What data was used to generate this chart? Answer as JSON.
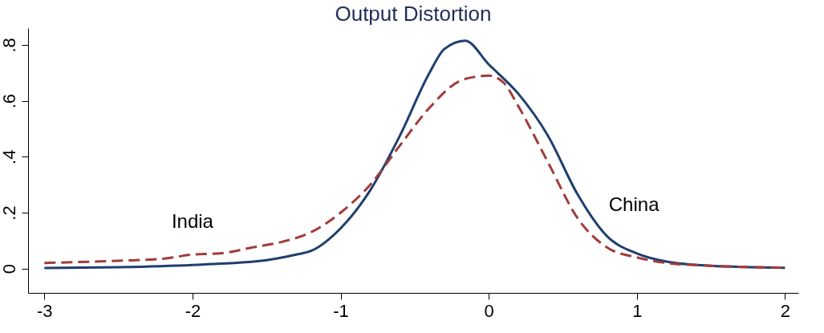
{
  "chart_data": {
    "type": "line",
    "title": "Output Distortion",
    "xlim": [
      -3.11,
      2.09
    ],
    "ylim": [
      -0.087,
      0.86
    ],
    "xticks": [
      -3,
      -2,
      -1,
      0,
      1,
      2
    ],
    "yticks": [
      {
        "value": 0,
        "label": "0"
      },
      {
        "value": 0.2,
        "label": ".2"
      },
      {
        "value": 0.4,
        "label": ".4"
      },
      {
        "value": 0.6,
        "label": ".6"
      },
      {
        "value": 0.8,
        "label": ".8"
      }
    ],
    "grid": false,
    "series": [
      {
        "name": "China",
        "color": "#1f3f6e",
        "line_style": "solid",
        "x": [
          -3,
          -2.5,
          -2,
          -1.5,
          -1.3,
          -1.2,
          -1.0,
          -0.8,
          -0.6,
          -0.4,
          -0.3,
          -0.16,
          0,
          0.2,
          0.4,
          0.6,
          0.8,
          1.0,
          1.2,
          1.5,
          2
        ],
        "values": [
          0.002,
          0.005,
          0.013,
          0.03,
          0.05,
          0.063,
          0.144,
          0.28,
          0.475,
          0.7,
          0.785,
          0.815,
          0.73,
          0.625,
          0.475,
          0.265,
          0.115,
          0.054,
          0.025,
          0.01,
          0.003
        ]
      },
      {
        "name": "India",
        "color": "#a13c3c",
        "line_style": "dashed",
        "x": [
          -3,
          -2.5,
          -2.2,
          -2.0,
          -1.8,
          -1.6,
          -1.4,
          -1.2,
          -1.0,
          -0.8,
          -0.6,
          -0.4,
          -0.2,
          -0.1,
          0,
          0.1,
          0.2,
          0.4,
          0.6,
          0.8,
          1.0,
          1.2,
          1.5,
          2
        ],
        "values": [
          0.02,
          0.028,
          0.035,
          0.05,
          0.055,
          0.075,
          0.095,
          0.13,
          0.2,
          0.3,
          0.44,
          0.575,
          0.67,
          0.685,
          0.69,
          0.665,
          0.58,
          0.38,
          0.18,
          0.075,
          0.04,
          0.02,
          0.01,
          0.003
        ]
      }
    ]
  }
}
